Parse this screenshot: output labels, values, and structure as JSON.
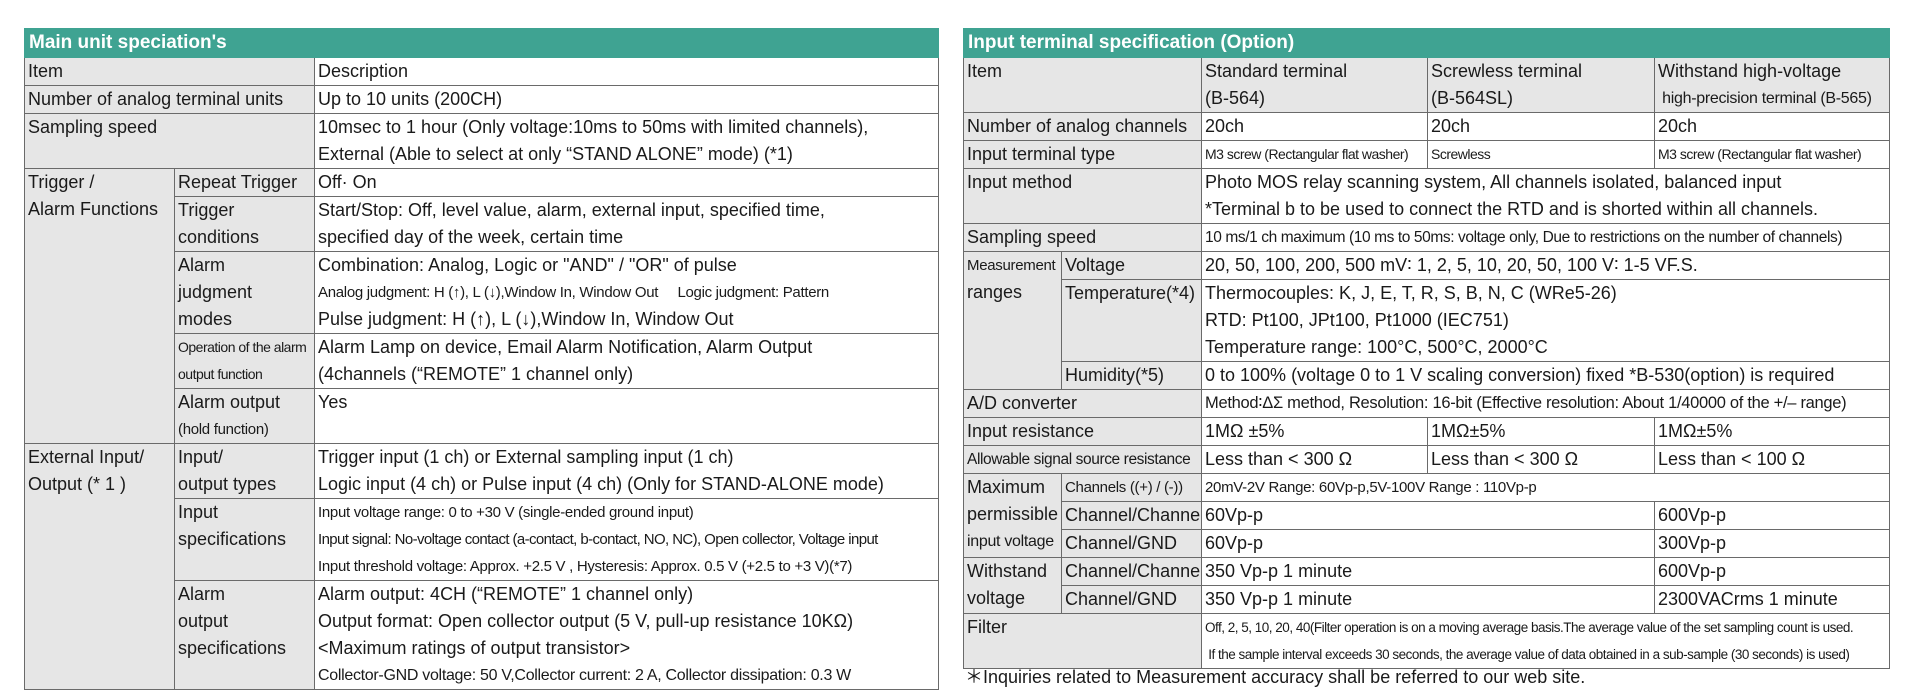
{
  "left": {
    "title": "Main unit speciation's",
    "col_item": "Item",
    "col_desc": "Description",
    "rows": {
      "analog_units": {
        "label": "Number of analog terminal units",
        "desc": "Up to 10 units (200CH)"
      },
      "sampling": {
        "label": "Sampling speed",
        "desc1": "10msec to 1 hour (Only voltage:10ms to 50ms with limited channels),",
        "desc2": "External (Able to select at only “STAND ALONE”  mode) (*1)"
      },
      "trigger_group": {
        "l1": "Trigger /",
        "l2": "Alarm Functions"
      },
      "repeat": {
        "label": "Repeat Trigger",
        "desc": "Off· On"
      },
      "trig_cond": {
        "l1": "Trigger",
        "l2": "conditions",
        "d1": "Start/Stop: Off, level value, alarm, external input, specified time,",
        "d2": "specified day of the week, certain time"
      },
      "alarm_judg": {
        "l1": "Alarm",
        "l2": "judgment",
        "l3": "modes",
        "d1": "Combination: Analog, Logic or \"AND\" / \"OR\" of pulse",
        "d2": "Analog judgment: H (↑), L (↓),Window In, Window Out     Logic judgment: Pattern",
        "d3": "Pulse judgment: H (↑), L (↓),Window In, Window Out"
      },
      "alarm_op": {
        "l1": "Operation of the alarm",
        "l2": "output function",
        "d1": "Alarm Lamp on device, Email Alarm Notification, Alarm Output",
        "d2": "(4channels (“REMOTE” 1 channel only)"
      },
      "alarm_out": {
        "l1": "Alarm output",
        "l2": "(hold function)",
        "d1": "Yes"
      },
      "ext_group": {
        "l1": "External Input/",
        "l2": "Output (* 1 )"
      },
      "io_types": {
        "l1": "Input/",
        "l2": "output types",
        "d1": "Trigger input (1 ch) or External sampling input (1 ch)",
        "d2": "Logic input (4 ch) or Pulse input (4 ch) (Only for STAND-ALONE mode)"
      },
      "input_spec": {
        "l1": "Input",
        "l2": "specifications",
        "d1": "Input voltage range: 0 to +30 V (single-ended ground input)",
        "d2": "Input signal: No-voltage contact (a-contact, b-contact, NO, NC), Open collector, Voltage input",
        "d3": "Input threshold voltage: Approx. +2.5 V , Hysteresis: Approx. 0.5 V (+2.5 to +3 V)(*7)"
      },
      "alarm_out_spec": {
        "l1": "Alarm",
        "l2": "output",
        "l3": "specifications",
        "d1": "Alarm output: 4CH (“REMOTE” 1 channel only)",
        "d2": "Output format: Open collector output (5 V, pull-up resistance 10KΩ)",
        "d3": "<Maximum ratings of output transistor>",
        "d4": "Collector-GND voltage: 50 V,Collector current: 2 A, Collector dissipation: 0.3 W"
      }
    }
  },
  "right": {
    "title": "Input terminal specification (Option)",
    "col_item": "Item",
    "col_std1": "Standard terminal",
    "col_std2": "(B-564)",
    "col_scr1": "Screwless terminal",
    "col_scr2": "(B-564SL)",
    "col_hv1": "Withstand high-voltage",
    "col_hv2": " high-precision terminal (B-565)",
    "rows": {
      "channels": {
        "label": "Number of analog channels",
        "std": "20ch",
        "scr": "20ch",
        "hv": "20ch"
      },
      "term_type": {
        "label": "Input terminal type",
        "std": "M3 screw (Rectangular flat washer)",
        "scr": "Screwless",
        "hv": "M3 screw (Rectangular flat washer)"
      },
      "method": {
        "label": "Input method",
        "d1": "Photo MOS relay scanning system, All channels isolated, balanced input",
        "d2": "*Terminal b to be used to connect the RTD and is shorted within all channels."
      },
      "sampling": {
        "label": "Sampling speed",
        "desc": "10 ms/1 ch maximum (10 ms to 50ms: voltage only, Due to restrictions on the number of channels)"
      },
      "meas": {
        "l1": "Measurement",
        "l2": "ranges"
      },
      "voltage": {
        "label": "Voltage",
        "desc": "20, 50, 100, 200, 500 mV∶ 1, 2, 5, 10, 20, 50, 100 V∶ 1-5 VF.S."
      },
      "temperature": {
        "label": "Temperature(*4)",
        "d1": "Thermocouples: K, J, E, T, R, S, B, N, C (WRe5-26)",
        "d2": "RTD: Pt100, JPt100, Pt1000 (IEC751)",
        "d3": "Temperature range: 100°C, 500°C, 2000°C"
      },
      "humidity": {
        "label": "Humidity(*5)",
        "desc": "0 to 100% (voltage 0 to 1 V scaling conversion) fixed  *B-530(option) is required"
      },
      "adc": {
        "label": "A/D converter",
        "desc": "Method∶ΔΣ method, Resolution: 16-bit (Effective resolution: About 1/40000 of the +/– range)"
      },
      "resistance": {
        "label": "Input resistance",
        "std": "1MΩ ±5%",
        "scr": "1MΩ±5%",
        "hv": "1MΩ±5%"
      },
      "source_res": {
        "label": "Allowable signal source resistance",
        "std": "Less than < 300 Ω",
        "scr": "Less than < 300 Ω",
        "hv": "Less than < 100 Ω"
      },
      "max_group": {
        "l1": "Maximum",
        "l2": "permissible",
        "l3": "input voltage"
      },
      "channels_pm": {
        "label": "Channels ((+) / (-))",
        "desc": "20mV-2V Range: 60Vp-p,5V-100V Range : 110Vp-p"
      },
      "ch_ch": {
        "label": "Channel/Channel",
        "std": "60Vp-p",
        "hv": "600Vp-p"
      },
      "ch_gnd": {
        "label": "Channel/GND",
        "std": "60Vp-p",
        "hv": "300Vp-p"
      },
      "withstand_group": {
        "l1": "Withstand",
        "l2": "voltage"
      },
      "w_ch_ch": {
        "label": "Channel/Channel",
        "std": "350 Vp-p 1 minute",
        "hv": "600Vp-p"
      },
      "w_ch_gnd": {
        "label": "Channel/GND",
        "std": "350 Vp-p 1 minute",
        "hv": "2300VACrms 1 minute"
      },
      "filter": {
        "label": "Filter",
        "d1": "Off, 2, 5, 10, 20, 40(Filter operation is on a moving average basis.The average value of the set sampling count is used.",
        "d2": " If the sample interval exceeds 30 seconds, the average value of data obtained in a sub-sample (30 seconds) is used)"
      }
    },
    "note": "＊Inquiries related to Measurement accuracy shall be referred to our web site."
  }
}
